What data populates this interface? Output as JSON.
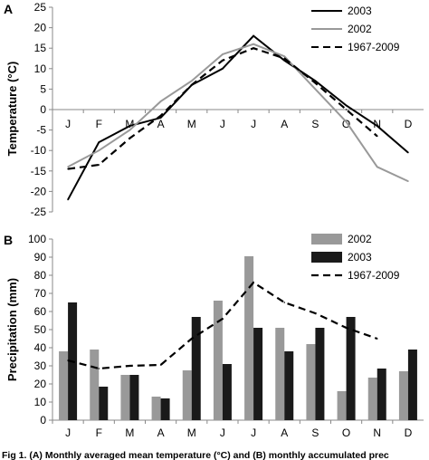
{
  "chart_data": [
    {
      "type": "line",
      "panel_label": "A",
      "ylabel": "Temperature (°C)",
      "ylim": [
        -25,
        25
      ],
      "yticks": [
        -25,
        -20,
        -15,
        -10,
        -5,
        0,
        5,
        10,
        15,
        20,
        25
      ],
      "categories": [
        "J",
        "F",
        "M",
        "A",
        "M",
        "J",
        "J",
        "A",
        "S",
        "O",
        "N",
        "D"
      ],
      "series": [
        {
          "name": "2003",
          "color": "#000000",
          "style": "solid",
          "values": [
            -22,
            -8,
            -4,
            -2,
            6,
            10,
            18,
            12,
            7,
            1,
            -4,
            -10.5
          ]
        },
        {
          "name": "2002",
          "color": "#999999",
          "style": "solid",
          "values": [
            -14,
            -10,
            -5,
            2,
            7,
            13.5,
            16,
            13,
            5,
            -3,
            -14,
            -17.5
          ]
        },
        {
          "name": "1967-2009",
          "color": "#000000",
          "style": "dashed",
          "values": [
            -14.5,
            -13.5,
            -7,
            -1.5,
            6,
            12,
            15,
            12.5,
            6.5,
            0,
            -6.5,
            null
          ]
        }
      ]
    },
    {
      "type": "bar",
      "panel_label": "B",
      "ylabel": "Precipitation (mm)",
      "ylim": [
        0,
        100
      ],
      "yticks": [
        0,
        10,
        20,
        30,
        40,
        50,
        60,
        70,
        80,
        90,
        100
      ],
      "categories": [
        "J",
        "F",
        "M",
        "A",
        "M",
        "J",
        "J",
        "A",
        "S",
        "O",
        "N",
        "D"
      ],
      "series": [
        {
          "name": "2002",
          "color": "#999999",
          "kind": "bar",
          "values": [
            38,
            39,
            25,
            13,
            27.5,
            66,
            90.5,
            51,
            42,
            16,
            23.5,
            27
          ]
        },
        {
          "name": "2003",
          "color": "#1a1a1a",
          "kind": "bar",
          "values": [
            65,
            18.5,
            25,
            12,
            57,
            31,
            51,
            38,
            51,
            57,
            28.5,
            39
          ]
        },
        {
          "name": "1967-2009",
          "color": "#000000",
          "kind": "dashed-line",
          "values": [
            33,
            28.5,
            30,
            30.5,
            45,
            56,
            76,
            65,
            59,
            51,
            45,
            null
          ]
        }
      ]
    }
  ],
  "caption": "Fig 1. (A) Monthly averaged mean temperature (°C) and (B) monthly accumulated prec"
}
